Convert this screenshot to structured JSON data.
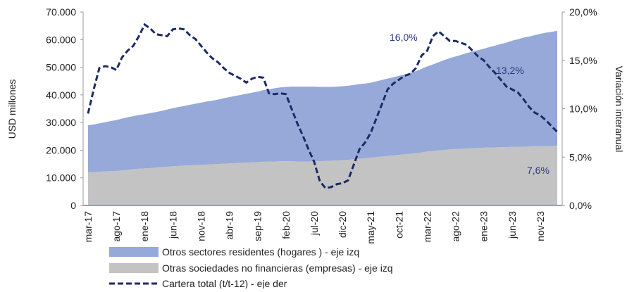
{
  "chart_data": {
    "type": "area_line",
    "y_label": "USD millones",
    "y2_label": "Variación interanual",
    "categories": [
      "mar-17",
      null,
      null,
      null,
      null,
      "ago-17",
      null,
      null,
      null,
      null,
      "ene-18",
      null,
      null,
      null,
      null,
      "jun-18",
      null,
      null,
      null,
      null,
      "nov-18",
      null,
      null,
      null,
      null,
      "abr-19",
      null,
      null,
      null,
      null,
      "sep-19",
      null,
      null,
      null,
      null,
      "feb-20",
      null,
      null,
      null,
      null,
      "jul-20",
      null,
      null,
      null,
      null,
      "dic-20",
      null,
      null,
      null,
      null,
      "may-21",
      null,
      null,
      null,
      null,
      "oct-21",
      null,
      null,
      null,
      null,
      "mar-22",
      null,
      null,
      null,
      null,
      "ago-22",
      null,
      null,
      null,
      null,
      "ene-23",
      null,
      null,
      null,
      null,
      "jun-23",
      null,
      null,
      null,
      null,
      "nov-23",
      null,
      null,
      null
    ],
    "series": [
      {
        "name": "Otras sociedades no financieras (empresas) - eje izq",
        "color": "#c3c3c3",
        "values": [
          12000,
          12100,
          12200,
          12300,
          12400,
          12500,
          12700,
          12900,
          13100,
          13300,
          13400,
          13500,
          13700,
          13900,
          14000,
          14200,
          14300,
          14400,
          14500,
          14600,
          14700,
          14800,
          14900,
          15000,
          15100,
          15200,
          15300,
          15400,
          15500,
          15600,
          15700,
          15800,
          15800,
          15900,
          16000,
          16000,
          16000,
          15900,
          15900,
          15900,
          16000,
          16000,
          16100,
          16200,
          16300,
          16400,
          16500,
          16700,
          16900,
          17100,
          17300,
          17500,
          17700,
          17900,
          18100,
          18300,
          18500,
          18700,
          18900,
          19200,
          19500,
          19700,
          19900,
          20100,
          20300,
          20400,
          20500,
          20600,
          20700,
          20800,
          20900,
          21000,
          21000,
          21100,
          21100,
          21200,
          21200,
          21300,
          21300,
          21400,
          21400,
          21500,
          21500,
          21600
        ]
      },
      {
        "name": "Otros sectores residentes (hogares ) - eje izq",
        "color": "#96a9d8",
        "values": [
          17000,
          17200,
          17500,
          17800,
          18100,
          18400,
          18700,
          19000,
          19200,
          19400,
          19600,
          19900,
          20100,
          20300,
          20700,
          21000,
          21300,
          21600,
          21900,
          22200,
          22500,
          22800,
          23000,
          23300,
          23700,
          24000,
          24300,
          24600,
          24900,
          25200,
          25500,
          25900,
          26200,
          26500,
          26700,
          26900,
          27000,
          27100,
          27100,
          27100,
          27000,
          26900,
          26800,
          26700,
          26700,
          26700,
          26800,
          26900,
          27000,
          27000,
          27100,
          27400,
          27700,
          28000,
          28300,
          28600,
          28900,
          29300,
          29700,
          30200,
          30800,
          31300,
          31900,
          32500,
          33000,
          33500,
          34000,
          34500,
          35000,
          35400,
          35800,
          36300,
          36800,
          37300,
          37800,
          38400,
          38900,
          39400,
          39800,
          40200,
          40700,
          41000,
          41300,
          41600
        ]
      },
      {
        "name": "Cartera total (t/t-12) - eje der",
        "color": "#1c2a66",
        "axis": "y2",
        "values": [
          9.5,
          12.0,
          14.2,
          14.4,
          14.3,
          14.0,
          15.3,
          16.0,
          16.5,
          17.5,
          18.7,
          18.3,
          17.7,
          17.6,
          17.5,
          18.2,
          18.3,
          18.2,
          17.6,
          17.2,
          16.5,
          15.8,
          15.2,
          14.8,
          14.2,
          13.7,
          13.4,
          13.1,
          12.7,
          13.1,
          13.3,
          13.2,
          11.6,
          11.5,
          11.6,
          11.5,
          10.0,
          8.5,
          7.2,
          5.8,
          4.5,
          2.5,
          1.8,
          1.9,
          2.2,
          2.3,
          2.6,
          4.2,
          5.8,
          6.5,
          7.5,
          9.0,
          10.5,
          12.0,
          12.6,
          13.0,
          13.4,
          13.6,
          14.2,
          15.5,
          16.0,
          17.5,
          18.0,
          17.5,
          17.0,
          17.0,
          16.8,
          16.6,
          16.0,
          15.4,
          15.0,
          14.3,
          13.7,
          13.0,
          12.3,
          12.0,
          11.7,
          11.0,
          10.2,
          9.6,
          9.3,
          8.8,
          8.2,
          7.6
        ]
      }
    ],
    "annotations": [
      "16,0%",
      "13,2%",
      "7,6%"
    ],
    "ylim": [
      0,
      70000
    ],
    "yticks": [
      0,
      {
        "value": 10000,
        "label": "10.000"
      },
      {
        "value": 20000,
        "label": "20.000"
      },
      {
        "value": 30000,
        "label": "30.000"
      },
      {
        "value": 40000,
        "label": "40.000"
      },
      {
        "value": 50000,
        "label": "50.000"
      },
      {
        "value": 60000,
        "label": "60.000"
      },
      {
        "value": 70000,
        "label": "70.000"
      }
    ],
    "y2lim": [
      0,
      20
    ],
    "y2ticks": [
      {
        "value": 0,
        "label": "0,0%"
      },
      {
        "value": 5,
        "label": "5,0%"
      },
      {
        "value": 10,
        "label": "10,0%"
      },
      {
        "value": 15,
        "label": "15,0%"
      },
      {
        "value": 20,
        "label": "20,0%"
      }
    ]
  }
}
